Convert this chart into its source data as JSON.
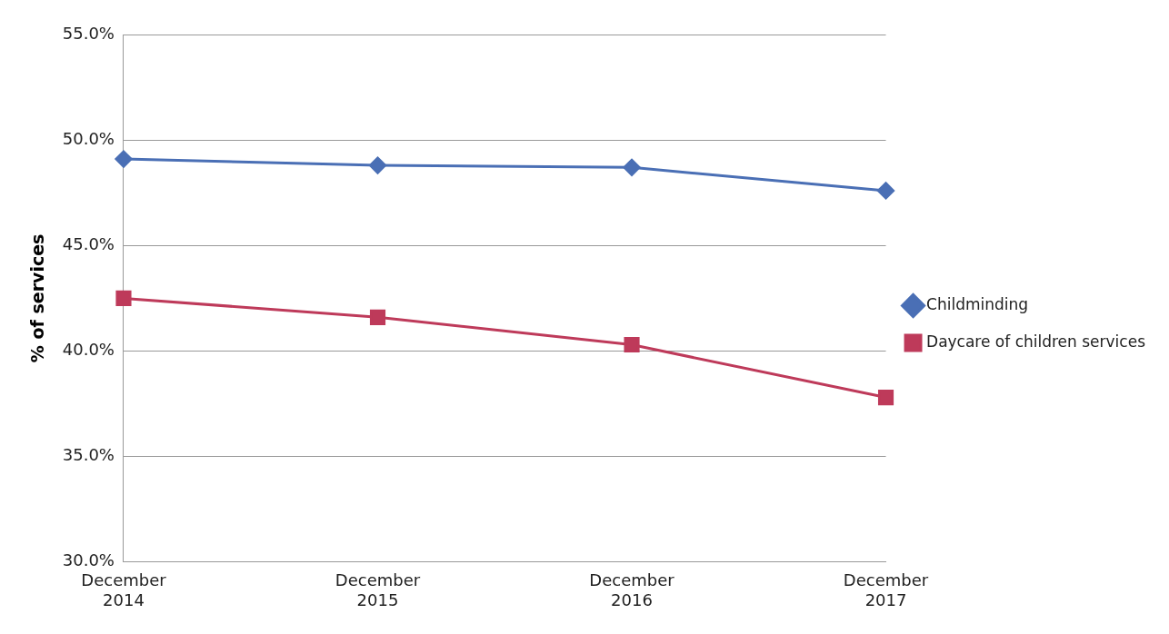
{
  "chart_data": {
    "type": "line",
    "ylabel": "% of services",
    "categories": [
      "December 2014",
      "December 2015",
      "December 2016",
      "December 2017"
    ],
    "series": [
      {
        "name": "Childminding",
        "color": "#4a6fb5",
        "marker": "diamond",
        "values": [
          49.1,
          48.8,
          48.7,
          47.6
        ]
      },
      {
        "name": "Daycare of children services",
        "color": "#be3a5a",
        "marker": "square",
        "values": [
          42.5,
          41.6,
          40.3,
          37.8
        ]
      }
    ],
    "ylim": [
      30,
      55
    ],
    "yticks": [
      {
        "value": 30,
        "label": "30.0%"
      },
      {
        "value": 35,
        "label": "35.0%"
      },
      {
        "value": 40,
        "label": "40.0%"
      },
      {
        "value": 45,
        "label": "45.0%"
      },
      {
        "value": 50,
        "label": "50.0%"
      },
      {
        "value": 55,
        "label": "55.0%"
      }
    ],
    "grid": "y",
    "legend": "right"
  }
}
